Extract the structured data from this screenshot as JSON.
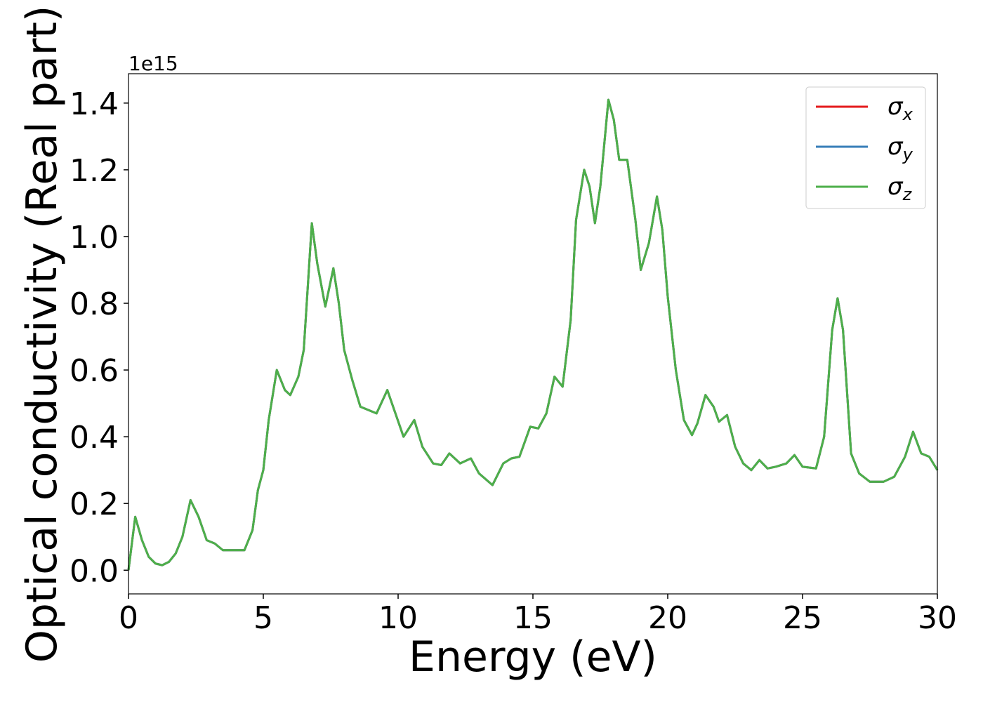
{
  "chart_data": {
    "type": "line",
    "x_label": "Energy (eV)",
    "y_label": "Optical conductivity (Real part)",
    "y_offset_label": "1e15",
    "x": [
      0,
      0.25,
      0.5,
      0.75,
      1.0,
      1.25,
      1.5,
      1.75,
      2.0,
      2.3,
      2.6,
      2.9,
      3.2,
      3.5,
      4.0,
      4.3,
      4.6,
      4.8,
      5.0,
      5.2,
      5.5,
      5.8,
      6.0,
      6.3,
      6.5,
      6.8,
      7.0,
      7.3,
      7.6,
      7.8,
      8.0,
      8.3,
      8.6,
      8.9,
      9.2,
      9.6,
      9.9,
      10.2,
      10.6,
      10.9,
      11.3,
      11.6,
      11.9,
      12.3,
      12.7,
      13.0,
      13.5,
      13.9,
      14.2,
      14.5,
      14.9,
      15.2,
      15.5,
      15.8,
      16.1,
      16.4,
      16.6,
      16.9,
      17.1,
      17.3,
      17.5,
      17.8,
      18.0,
      18.2,
      18.5,
      18.8,
      19.0,
      19.3,
      19.6,
      19.8,
      20.0,
      20.3,
      20.6,
      20.9,
      21.1,
      21.4,
      21.7,
      21.9,
      22.2,
      22.5,
      22.8,
      23.1,
      23.4,
      23.7,
      24.0,
      24.4,
      24.7,
      25.0,
      25.5,
      25.8,
      26.1,
      26.3,
      26.5,
      26.8,
      27.1,
      27.5,
      28.0,
      28.4,
      28.8,
      29.1,
      29.4,
      29.7,
      30.0
    ],
    "series": [
      {
        "name": "σx",
        "color": "#e41a1c",
        "values": [
          0,
          0.16,
          0.09,
          0.04,
          0.02,
          0.015,
          0.025,
          0.05,
          0.1,
          0.21,
          0.16,
          0.09,
          0.08,
          0.06,
          0.06,
          0.06,
          0.12,
          0.24,
          0.3,
          0.45,
          0.6,
          0.54,
          0.525,
          0.58,
          0.66,
          1.04,
          0.92,
          0.79,
          0.905,
          0.8,
          0.66,
          0.57,
          0.49,
          0.48,
          0.47,
          0.54,
          0.47,
          0.4,
          0.45,
          0.37,
          0.32,
          0.315,
          0.35,
          0.32,
          0.335,
          0.29,
          0.255,
          0.32,
          0.335,
          0.34,
          0.43,
          0.425,
          0.47,
          0.58,
          0.55,
          0.75,
          1.05,
          1.2,
          1.15,
          1.04,
          1.15,
          1.41,
          1.35,
          1.23,
          1.23,
          1.05,
          0.9,
          0.98,
          1.12,
          1.02,
          0.82,
          0.6,
          0.45,
          0.405,
          0.44,
          0.525,
          0.49,
          0.445,
          0.465,
          0.37,
          0.32,
          0.3,
          0.33,
          0.305,
          0.31,
          0.32,
          0.345,
          0.31,
          0.305,
          0.4,
          0.72,
          0.815,
          0.72,
          0.35,
          0.29,
          0.265,
          0.265,
          0.28,
          0.34,
          0.415,
          0.35,
          0.34,
          0.3
        ]
      },
      {
        "name": "σy",
        "color": "#377eb8",
        "values": [
          0,
          0.16,
          0.09,
          0.04,
          0.02,
          0.015,
          0.025,
          0.05,
          0.1,
          0.21,
          0.16,
          0.09,
          0.08,
          0.06,
          0.06,
          0.06,
          0.12,
          0.24,
          0.3,
          0.45,
          0.6,
          0.54,
          0.525,
          0.58,
          0.66,
          1.04,
          0.92,
          0.79,
          0.905,
          0.8,
          0.66,
          0.57,
          0.49,
          0.48,
          0.47,
          0.54,
          0.47,
          0.4,
          0.45,
          0.37,
          0.32,
          0.315,
          0.35,
          0.32,
          0.335,
          0.29,
          0.255,
          0.32,
          0.335,
          0.34,
          0.43,
          0.425,
          0.47,
          0.58,
          0.55,
          0.75,
          1.05,
          1.2,
          1.15,
          1.04,
          1.15,
          1.41,
          1.35,
          1.23,
          1.23,
          1.05,
          0.9,
          0.98,
          1.12,
          1.02,
          0.82,
          0.6,
          0.45,
          0.405,
          0.44,
          0.525,
          0.49,
          0.445,
          0.465,
          0.37,
          0.32,
          0.3,
          0.33,
          0.305,
          0.31,
          0.32,
          0.345,
          0.31,
          0.305,
          0.4,
          0.72,
          0.815,
          0.72,
          0.35,
          0.29,
          0.265,
          0.265,
          0.28,
          0.34,
          0.415,
          0.35,
          0.34,
          0.3
        ]
      },
      {
        "name": "σz",
        "color": "#4daf4a",
        "values": [
          0,
          0.16,
          0.09,
          0.04,
          0.02,
          0.015,
          0.025,
          0.05,
          0.1,
          0.21,
          0.16,
          0.09,
          0.08,
          0.06,
          0.06,
          0.06,
          0.12,
          0.24,
          0.3,
          0.45,
          0.6,
          0.54,
          0.525,
          0.58,
          0.66,
          1.04,
          0.92,
          0.79,
          0.905,
          0.8,
          0.66,
          0.57,
          0.49,
          0.48,
          0.47,
          0.54,
          0.47,
          0.4,
          0.45,
          0.37,
          0.32,
          0.315,
          0.35,
          0.32,
          0.335,
          0.29,
          0.255,
          0.32,
          0.335,
          0.34,
          0.43,
          0.425,
          0.47,
          0.58,
          0.55,
          0.75,
          1.05,
          1.2,
          1.15,
          1.04,
          1.15,
          1.41,
          1.35,
          1.23,
          1.23,
          1.05,
          0.9,
          0.98,
          1.12,
          1.02,
          0.82,
          0.6,
          0.45,
          0.405,
          0.44,
          0.525,
          0.49,
          0.445,
          0.465,
          0.37,
          0.32,
          0.3,
          0.33,
          0.305,
          0.31,
          0.32,
          0.345,
          0.31,
          0.305,
          0.4,
          0.72,
          0.815,
          0.72,
          0.35,
          0.29,
          0.265,
          0.265,
          0.28,
          0.34,
          0.415,
          0.35,
          0.34,
          0.3
        ]
      }
    ],
    "xlim": [
      0,
      30
    ],
    "xticks": [
      0,
      5,
      10,
      15,
      20,
      25,
      30
    ],
    "ylim": [
      -0.071,
      1.488
    ],
    "yticks": [
      {
        "value": 0,
        "label": "0.0"
      },
      0.2,
      0.4,
      0.6,
      0.8,
      {
        "value": 1,
        "label": "1.0"
      },
      1.2,
      1.4
    ],
    "grid": false,
    "legend": "upper right"
  }
}
